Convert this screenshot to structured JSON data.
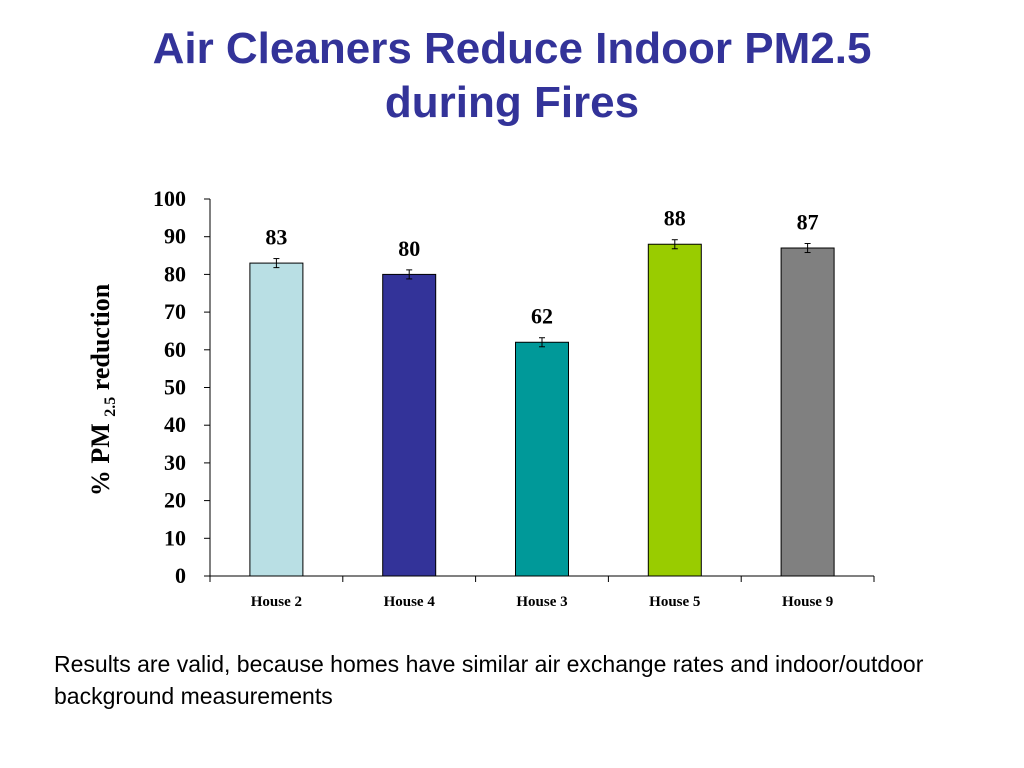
{
  "slide": {
    "title_line1": "Air Cleaners Reduce Indoor PM2.5",
    "title_line2": "during Fires",
    "note": "Results are valid, because homes have similar air exchange rates and indoor/outdoor background measurements"
  },
  "colors": {
    "title": "#333399",
    "bars": [
      "#b9dfe4",
      "#333399",
      "#009999",
      "#99cc00",
      "#808080"
    ]
  },
  "chart_data": {
    "type": "bar",
    "title": "",
    "ylabel_parts": {
      "pre": "% PM ",
      "sub": "2.5",
      "post": " reduction"
    },
    "xlabel": "",
    "categories": [
      "House 2",
      "House 4",
      "House 3",
      "House 5",
      "House 9"
    ],
    "values": [
      83,
      80,
      62,
      88,
      87
    ],
    "data_labels": [
      "83",
      "80",
      "62",
      "88",
      "87"
    ],
    "error": [
      1.2,
      1.2,
      1.2,
      1.2,
      1.2
    ],
    "ylim": [
      0,
      100
    ],
    "yticks": [
      "0",
      "10",
      "20",
      "30",
      "40",
      "50",
      "60",
      "70",
      "80",
      "90",
      "100"
    ],
    "grid": false,
    "legend": "none"
  }
}
